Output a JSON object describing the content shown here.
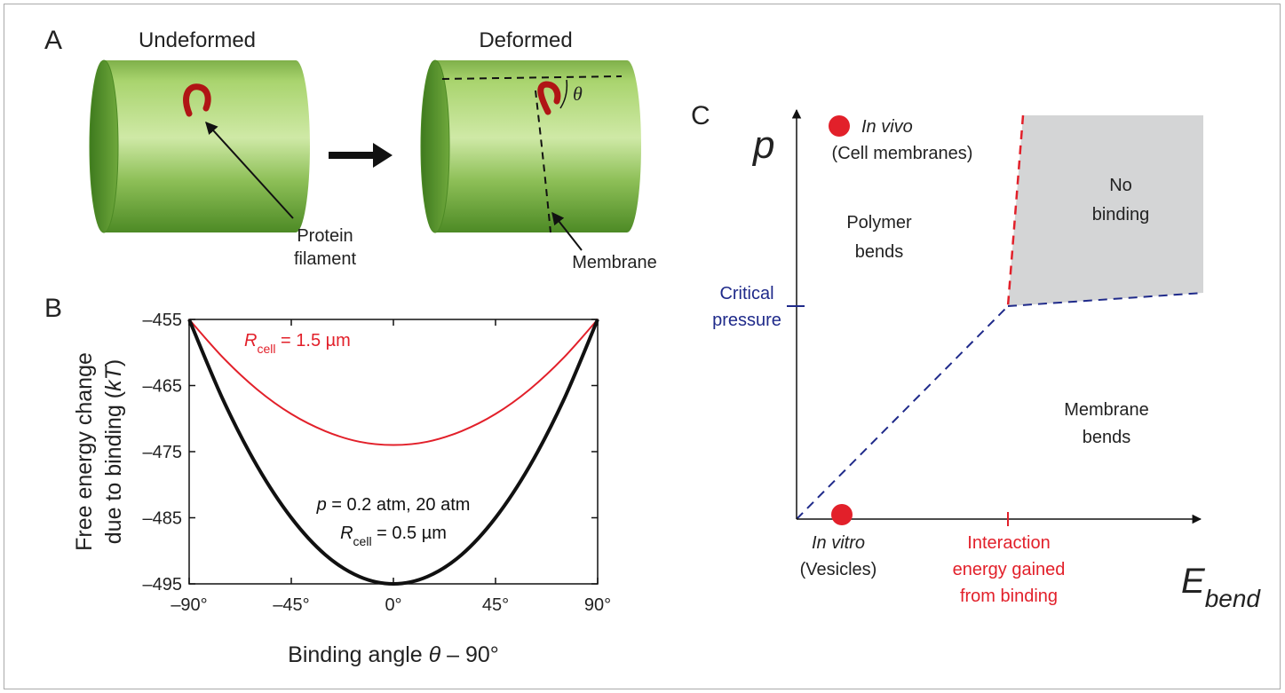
{
  "panel_a": {
    "letter": "A",
    "left_title": "Undeformed",
    "right_title": "Deformed",
    "filament_label": [
      "Protein",
      "filament"
    ],
    "membrane_label": "Membrane",
    "angle_symbol": "θ"
  },
  "chart_data": {
    "type": "line",
    "letter": "B",
    "x": [
      -90,
      -75,
      -60,
      -45,
      -30,
      -15,
      0,
      15,
      30,
      45,
      60,
      75,
      90
    ],
    "series": [
      {
        "label": [
          {
            "text": "R",
            "style": "italic"
          },
          {
            "text": "cell",
            "style": "sub"
          },
          {
            "text": " = 1.5 µm"
          }
        ],
        "color": "#e2202a",
        "width": 2,
        "values": [
          -455,
          -460.8,
          -465.6,
          -469.3,
          -471.9,
          -473.5,
          -474,
          -473.5,
          -471.9,
          -469.3,
          -465.6,
          -460.8,
          -455
        ]
      },
      {
        "label": [
          {
            "text": "p",
            "style": "italic"
          },
          {
            "text": " = 0.2 atm, 20 atm"
          }
        ],
        "label2": [
          {
            "text": "R",
            "style": "italic"
          },
          {
            "text": "cell",
            "style": "sub"
          },
          {
            "text": " = 0.5 µm"
          }
        ],
        "color": "#111111",
        "width": 4,
        "values": [
          -455,
          -467.2,
          -477.2,
          -485,
          -490.6,
          -493.9,
          -495,
          -493.9,
          -490.6,
          -485,
          -477.2,
          -467.2,
          -455
        ]
      }
    ],
    "xlim": [
      -90,
      90
    ],
    "ylim": [
      -495,
      -455
    ],
    "xticks": [
      {
        "value": -90,
        "label": "–90°"
      },
      {
        "value": -45,
        "label": "–45°"
      },
      {
        "value": 0,
        "label": "0°"
      },
      {
        "value": 45,
        "label": "45°"
      },
      {
        "value": 90,
        "label": "90°"
      }
    ],
    "yticks": [
      {
        "value": -455,
        "label": "–455"
      },
      {
        "value": -465,
        "label": "–465"
      },
      {
        "value": -475,
        "label": "–475"
      },
      {
        "value": -485,
        "label": "–485"
      },
      {
        "value": -495,
        "label": "–495"
      }
    ],
    "xlabel": [
      {
        "text": "Binding angle "
      },
      {
        "text": "θ",
        "style": "italic"
      },
      {
        "text": " – 90°"
      }
    ],
    "ylabel": [
      [
        {
          "text": "Free energy change"
        }
      ],
      [
        {
          "text": "due to binding ("
        },
        {
          "text": "kT",
          "style": "italic"
        },
        {
          "text": ")"
        }
      ]
    ]
  },
  "panel_c": {
    "letter": "C",
    "y_axis": "p",
    "x_axis": [
      {
        "text": "E",
        "style": "italic"
      },
      {
        "text": "bend",
        "style": "sub-italic"
      }
    ],
    "in_vivo": "In vivo",
    "in_vivo_note": "(Cell membranes)",
    "polymer_bends": [
      "Polymer",
      "bends"
    ],
    "no_binding": [
      "No",
      "binding"
    ],
    "critical_pressure": [
      "Critical",
      "pressure"
    ],
    "membrane_bends": [
      "Membrane",
      "bends"
    ],
    "in_vitro": "In vitro",
    "in_vitro_note": "(Vesicles)",
    "interaction": [
      "Interaction",
      "energy gained",
      "from binding"
    ]
  }
}
